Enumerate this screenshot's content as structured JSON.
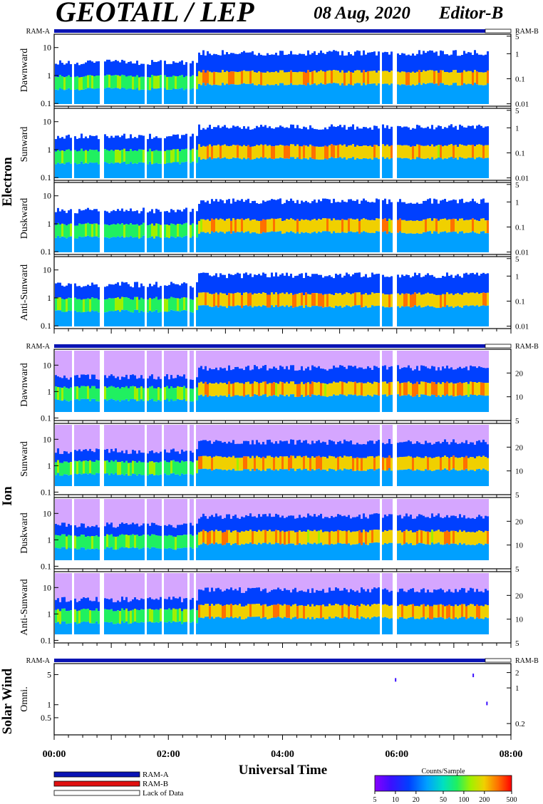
{
  "header": {
    "title": "GEOTAIL / LEP",
    "date": "08 Aug, 2020",
    "editor": "Editor-B"
  },
  "ram": {
    "a": "RAM-A",
    "b": "RAM-B"
  },
  "sections": {
    "electron": "Electron",
    "ion": "Ion",
    "solar": "Solar Wind"
  },
  "colors": {
    "ram_a": "#0a14b4",
    "ram_b": "#e01010",
    "lack": "#ffffff",
    "colorbar": [
      "#8800ff",
      "#3a10ff",
      "#0040ff",
      "#00a0ff",
      "#00e0c0",
      "#20f060",
      "#a0f000",
      "#f0d000",
      "#ff7000",
      "#ff0000"
    ]
  },
  "chart_data": {
    "type": "heatmap",
    "xlabel": "Universal Time",
    "x_ticks": [
      "00:00",
      "02:00",
      "04:00",
      "06:00",
      "08:00"
    ],
    "x_range_hours": [
      0,
      8
    ],
    "data_end_hours": 7.6,
    "ram_b_start_hours": 7.55,
    "panels": [
      {
        "group": "electron",
        "label": "Dawnward",
        "left_ticks": [
          "10",
          "1",
          "0.1"
        ],
        "left_range": [
          0.08,
          30
        ],
        "right_ticks": [
          "5",
          "1",
          "0.1",
          "0.01"
        ],
        "right_range": [
          0.008,
          6
        ]
      },
      {
        "group": "electron",
        "label": "Sunward",
        "left_ticks": [
          "10",
          "1",
          "0.1"
        ],
        "left_range": [
          0.08,
          30
        ],
        "right_ticks": [
          "5",
          "1",
          "0.1",
          "0.01"
        ],
        "right_range": [
          0.008,
          6
        ]
      },
      {
        "group": "electron",
        "label": "Duskward",
        "left_ticks": [
          "10",
          "1",
          "0.1"
        ],
        "left_range": [
          0.08,
          30
        ],
        "right_ticks": [
          "5",
          "1",
          "0.1",
          "0.01"
        ],
        "right_range": [
          0.008,
          6
        ]
      },
      {
        "group": "electron",
        "label": "Anti-Sunward",
        "left_ticks": [
          "10",
          "1",
          "0.1"
        ],
        "left_range": [
          0.08,
          30
        ],
        "right_ticks": [
          "5",
          "1",
          "0.1",
          "0.01"
        ],
        "right_range": [
          0.008,
          6
        ]
      },
      {
        "group": "ion",
        "label": "Dawnward",
        "left_ticks": [
          "10",
          "1",
          "0.1"
        ],
        "left_range": [
          0.08,
          40
        ],
        "right_ticks": [
          "20",
          "10",
          "5"
        ],
        "right_range": [
          5,
          40
        ]
      },
      {
        "group": "ion",
        "label": "Sunward",
        "left_ticks": [
          "10",
          "1",
          "0.1"
        ],
        "left_range": [
          0.08,
          40
        ],
        "right_ticks": [
          "20",
          "10",
          "5"
        ],
        "right_range": [
          5,
          40
        ]
      },
      {
        "group": "ion",
        "label": "Duskward",
        "left_ticks": [
          "10",
          "1",
          "0.1"
        ],
        "left_range": [
          0.08,
          40
        ],
        "right_ticks": [
          "20",
          "10",
          "5"
        ],
        "right_range": [
          5,
          40
        ]
      },
      {
        "group": "ion",
        "label": "Anti-Sunward",
        "left_ticks": [
          "10",
          "1",
          "0.1"
        ],
        "left_range": [
          0.08,
          40
        ],
        "right_ticks": [
          "20",
          "10",
          "5"
        ],
        "right_range": [
          5,
          40
        ]
      },
      {
        "group": "solar",
        "label": "Omni.",
        "left_ticks": [
          "5",
          "1",
          "0.5"
        ],
        "left_range": [
          0.2,
          9
        ],
        "right_ticks": [
          "2",
          "1",
          "0.2"
        ],
        "right_range": [
          0.12,
          3
        ]
      }
    ],
    "solar_points": [
      {
        "t": 5.98,
        "e": 3.7
      },
      {
        "t": 7.34,
        "e": 4.7
      },
      {
        "t": 7.58,
        "e": 1.05
      }
    ],
    "legend": [
      {
        "label": "RAM-A",
        "color": "#0a14b4"
      },
      {
        "label": "RAM-B",
        "color": "#e01010"
      },
      {
        "label": "Lack of Data",
        "color": "#ffffff"
      }
    ],
    "colorbar": {
      "title": "Counts/Sample",
      "ticks": [
        "5",
        "10",
        "20",
        "50",
        "100",
        "200",
        "500"
      ],
      "range": [
        5,
        500
      ]
    }
  }
}
